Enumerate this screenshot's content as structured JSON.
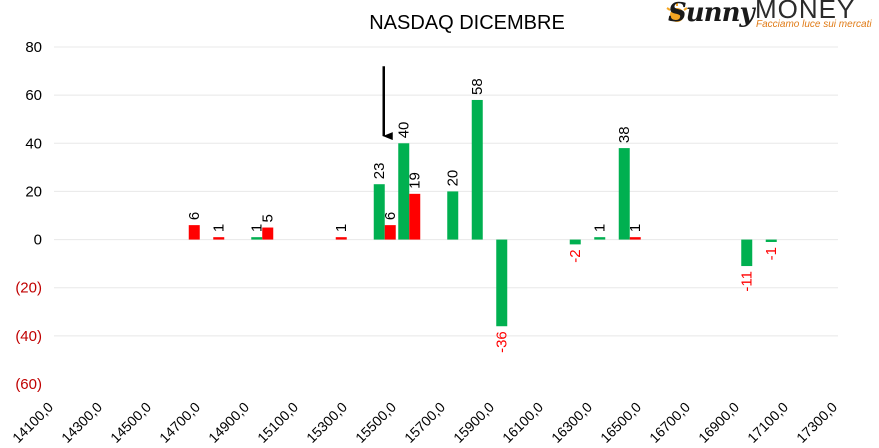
{
  "logo": {
    "brand_left": "Sunny",
    "brand_right": "MONEY",
    "tagline": "Facciamo luce sui mercati"
  },
  "colors": {
    "positive": "#00b050",
    "negative": "#ff0000",
    "negative_tick": "#c00000",
    "grid": "#e8e8e8",
    "text": "#000000"
  },
  "chart_data": {
    "type": "bar",
    "title": "NASDAQ DICEMBRE",
    "xlabel": "",
    "ylabel": "",
    "ylim": [
      -60,
      80
    ],
    "yticks": [
      {
        "value": 80,
        "label": "80"
      },
      {
        "value": 60,
        "label": "60"
      },
      {
        "value": 40,
        "label": "40"
      },
      {
        "value": 20,
        "label": "20"
      },
      {
        "value": 0,
        "label": "0"
      },
      {
        "value": -20,
        "label": "(20)"
      },
      {
        "value": -40,
        "label": "(40)"
      },
      {
        "value": -60,
        "label": "(60)"
      }
    ],
    "x_tick_labels": [
      "14100,0",
      "14300,0",
      "14500,0",
      "14700,0",
      "14900,0",
      "15100,0",
      "15300,0",
      "15500,0",
      "15700,0",
      "15900,0",
      "16100,0",
      "16300,0",
      "16500,0",
      "16700,0",
      "16900,0",
      "17100,0",
      "17300,0"
    ],
    "grid": true,
    "legend": "none",
    "series": [
      {
        "color": "#00b050",
        "points": [
          {
            "x": 14950,
            "value": 1,
            "label": "1"
          },
          {
            "x": 15450,
            "value": 23,
            "label": "23"
          },
          {
            "x": 15550,
            "value": 40,
            "label": "40"
          },
          {
            "x": 15750,
            "value": 20,
            "label": "20"
          },
          {
            "x": 15850,
            "value": 58,
            "label": "58"
          },
          {
            "x": 15950,
            "value": -36,
            "label": "-36"
          },
          {
            "x": 16250,
            "value": -2,
            "label": "-2"
          },
          {
            "x": 16350,
            "value": 1,
            "label": "1"
          },
          {
            "x": 16450,
            "value": 38,
            "label": "38"
          },
          {
            "x": 16950,
            "value": -11,
            "label": "-11"
          },
          {
            "x": 17050,
            "value": -1,
            "label": "-1"
          }
        ]
      },
      {
        "color": "#ff0000",
        "points": [
          {
            "x": 14650,
            "value": 6,
            "label": "6"
          },
          {
            "x": 14750,
            "value": 1,
            "label": "1"
          },
          {
            "x": 14950,
            "value": 5,
            "label": "5"
          },
          {
            "x": 15250,
            "value": 1,
            "label": "1"
          },
          {
            "x": 15450,
            "value": 6,
            "label": "6"
          },
          {
            "x": 15550,
            "value": 19,
            "label": "19"
          },
          {
            "x": 16450,
            "value": 1,
            "label": "1"
          }
        ]
      }
    ],
    "annotations": [
      {
        "type": "arrow",
        "x": 15450,
        "y_from": 72,
        "y_to": 43
      }
    ]
  }
}
